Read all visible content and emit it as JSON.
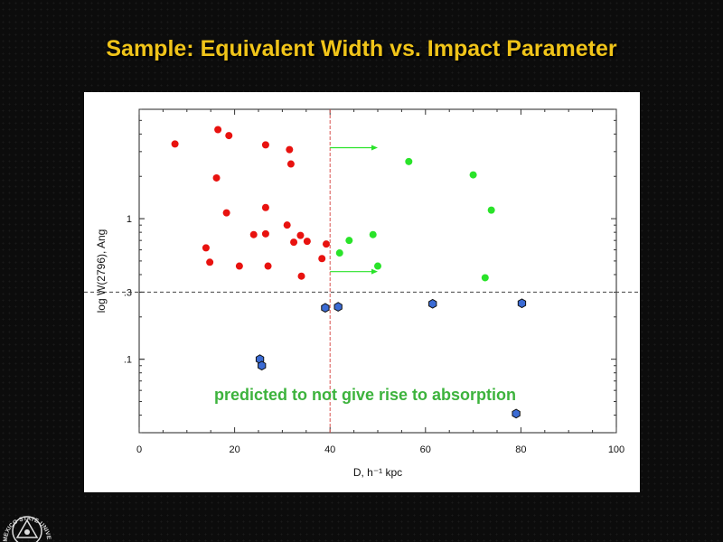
{
  "slide": {
    "title": "Sample: Equivalent Width vs. Impact Parameter"
  },
  "annotation": "predicted to not give rise to absorption",
  "logo_text": "NEW MEXICO STATE UNIVERSITY",
  "colors": {
    "red": "#e8120f",
    "green": "#29e329",
    "blue": "#3b6bd4",
    "guide": "#d9534f",
    "annotation": "#3db33d",
    "title": "#f0c419"
  },
  "chart_data": {
    "type": "scatter",
    "title": "",
    "xlabel": "D, h⁻¹ kpc",
    "ylabel": "log W(2796), Ang",
    "xlim": [
      0,
      100
    ],
    "ylim": [
      0.03,
      6
    ],
    "yscale": "log",
    "xticks": [
      "0",
      "20",
      "40",
      "60",
      "80",
      "100"
    ],
    "yticks": [
      {
        "value": 1,
        "label": "1"
      },
      {
        "value": 0.3,
        "label": ".3"
      },
      {
        "value": 0.1,
        "label": ".1"
      }
    ],
    "reference_lines": {
      "vertical_x": 40,
      "horizontal_y": 0.3
    },
    "arrows": [
      {
        "x_from": 40,
        "x_to": 50,
        "y": 3.2
      },
      {
        "x_from": 40,
        "x_to": 50,
        "y": 0.42
      }
    ],
    "series": [
      {
        "name": "",
        "color": "#e8120f",
        "marker": "circle",
        "points": [
          [
            7.5,
            3.4
          ],
          [
            16.5,
            4.3
          ],
          [
            18.8,
            3.9
          ],
          [
            26.5,
            3.35
          ],
          [
            31.5,
            3.1
          ],
          [
            31.8,
            2.45
          ],
          [
            16.2,
            1.95
          ],
          [
            26.5,
            1.2
          ],
          [
            18.3,
            1.1
          ],
          [
            31,
            0.9
          ],
          [
            24,
            0.77
          ],
          [
            26.5,
            0.78
          ],
          [
            33.8,
            0.76
          ],
          [
            32.4,
            0.68
          ],
          [
            35.2,
            0.69
          ],
          [
            39.2,
            0.66
          ],
          [
            14,
            0.62
          ],
          [
            38.3,
            0.52
          ],
          [
            14.8,
            0.49
          ],
          [
            21,
            0.46
          ],
          [
            27,
            0.46
          ],
          [
            34,
            0.39
          ]
        ]
      },
      {
        "name": "",
        "color": "#29e329",
        "marker": "circle",
        "points": [
          [
            56.5,
            2.55
          ],
          [
            70,
            2.05
          ],
          [
            73.8,
            1.15
          ],
          [
            49,
            0.77
          ],
          [
            44,
            0.7
          ],
          [
            42,
            0.57
          ],
          [
            50,
            0.46
          ],
          [
            72.5,
            0.38
          ]
        ]
      },
      {
        "name": "",
        "color": "#3b6bd4",
        "marker": "hexagon",
        "points": [
          [
            39,
            0.232
          ],
          [
            41.7,
            0.236
          ],
          [
            61.5,
            0.248
          ],
          [
            80.2,
            0.25
          ],
          [
            25.3,
            0.1
          ],
          [
            25.7,
            0.09
          ],
          [
            79,
            0.041
          ]
        ]
      }
    ]
  }
}
